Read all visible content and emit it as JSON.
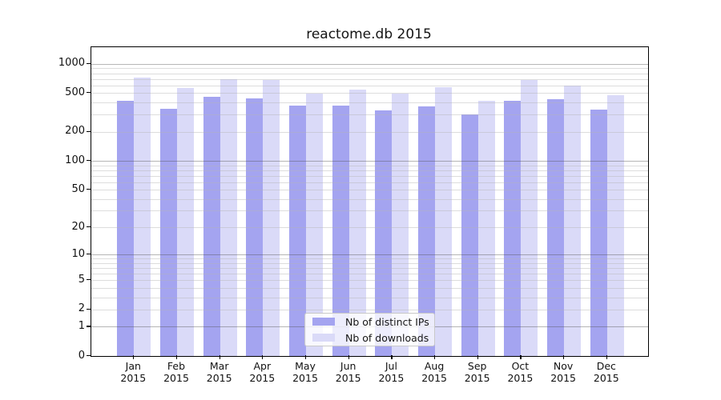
{
  "chart_data": {
    "type": "bar",
    "title": "reactome.db 2015",
    "categories": [
      "Jan 2015",
      "Feb 2015",
      "Mar 2015",
      "Apr 2015",
      "May 2015",
      "Jun 2015",
      "Jul 2015",
      "Aug 2015",
      "Sep 2015",
      "Oct 2015",
      "Nov 2015",
      "Dec 2015"
    ],
    "series": [
      {
        "name": "Nb of distinct IPs",
        "color": "#a4a4f0",
        "values": [
          420,
          346,
          460,
          438,
          369,
          374,
          332,
          362,
          302,
          420,
          433,
          335
        ]
      },
      {
        "name": "Nb of downloads",
        "color": "#dadaf8",
        "values": [
          715,
          565,
          700,
          685,
          497,
          539,
          490,
          575,
          419,
          685,
          600,
          475
        ]
      }
    ],
    "xlabel": "",
    "ylabel": "",
    "y_scale": "log10(1+value)",
    "ylim": [
      0,
      1480
    ],
    "y_ticks": [
      1000,
      500,
      200,
      100,
      50,
      20,
      10,
      5,
      2,
      1,
      0
    ],
    "minor_gridlines": [
      2,
      3,
      4,
      5,
      6,
      7,
      8,
      9,
      20,
      30,
      40,
      50,
      60,
      70,
      80,
      90,
      200,
      300,
      400,
      500,
      600,
      700,
      800,
      900
    ],
    "major_gridlines": [
      1,
      10,
      100,
      1000
    ],
    "grid": "on",
    "legend_position": "lower center"
  },
  "colors": {
    "background": "#ffffff",
    "spine": "#000000",
    "minor_grid": "#dedede",
    "major_grid": "#b3b3b3",
    "distinct_ips_bar": "#a4a4f0",
    "downloads_bar": "#dadaf8"
  }
}
